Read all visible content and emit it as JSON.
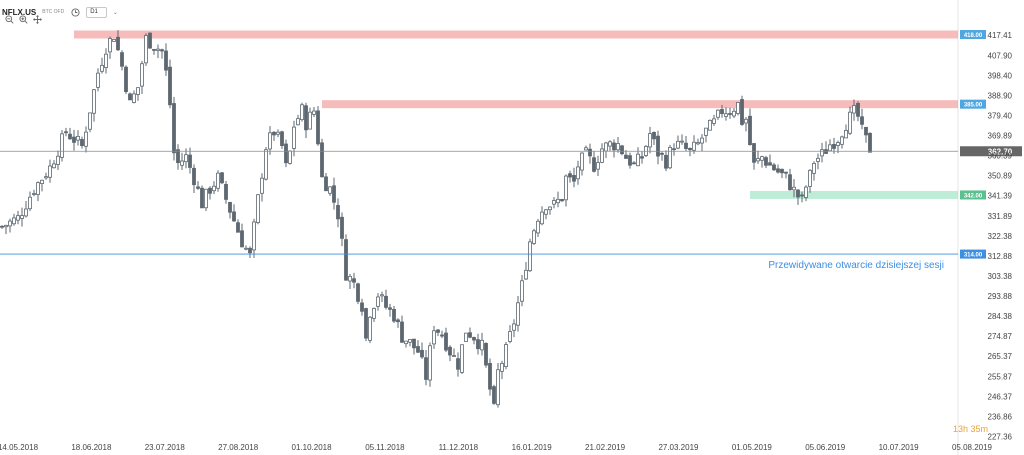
{
  "toolbar": {
    "symbol": "NFLX.US",
    "subtitle": "BTC OFD",
    "interval": "D1",
    "icons": [
      "clock-icon",
      "zoom-out-icon",
      "zoom-in-icon",
      "crosshair-icon"
    ]
  },
  "chart_data": {
    "type": "candlestick",
    "title": "NFLX.US",
    "interval": "D1",
    "ylim": [
      227.36,
      422.5
    ],
    "yticks": [
      "417.41",
      "407.90",
      "398.40",
      "388.90",
      "379.40",
      "369.89",
      "360.39",
      "350.89",
      "341.39",
      "331.89",
      "322.38",
      "312.88",
      "303.38",
      "293.88",
      "284.38",
      "274.87",
      "265.37",
      "255.87",
      "246.37",
      "236.86",
      "227.36"
    ],
    "x_labels": [
      "14.05.2018",
      "18.06.2018",
      "23.07.2018",
      "27.08.2018",
      "01.10.2018",
      "05.11.2018",
      "11.12.2018",
      "16.01.2019",
      "21.02.2019",
      "27.03.2019",
      "01.05.2019",
      "05.06.2019",
      "10.07.2019",
      "05.08.2019"
    ],
    "close_path": [
      [
        0,
        327
      ],
      [
        4,
        331
      ],
      [
        8,
        345
      ],
      [
        12,
        355
      ],
      [
        16,
        372
      ],
      [
        20,
        365
      ],
      [
        24,
        400
      ],
      [
        26,
        412
      ],
      [
        28,
        418
      ],
      [
        30,
        403
      ],
      [
        32,
        385
      ],
      [
        34,
        393
      ],
      [
        36,
        416
      ],
      [
        38,
        413
      ],
      [
        40,
        410
      ],
      [
        41,
        400
      ],
      [
        42,
        385
      ],
      [
        43,
        362
      ],
      [
        44,
        357
      ],
      [
        46,
        360
      ],
      [
        48,
        350
      ],
      [
        50,
        338
      ],
      [
        52,
        345
      ],
      [
        54,
        350
      ],
      [
        56,
        340
      ],
      [
        58,
        330
      ],
      [
        60,
        320
      ],
      [
        62,
        313
      ],
      [
        64,
        340
      ],
      [
        66,
        365
      ],
      [
        68,
        372
      ],
      [
        70,
        365
      ],
      [
        71,
        355
      ],
      [
        72,
        362
      ],
      [
        73,
        375
      ],
      [
        75,
        382
      ],
      [
        76,
        376
      ],
      [
        78,
        382
      ],
      [
        79,
        368
      ],
      [
        80,
        350
      ],
      [
        82,
        345
      ],
      [
        84,
        333
      ],
      [
        86,
        305
      ],
      [
        88,
        300
      ],
      [
        90,
        290
      ],
      [
        91,
        274
      ],
      [
        92,
        287
      ],
      [
        94,
        295
      ],
      [
        96,
        289
      ],
      [
        98,
        285
      ],
      [
        100,
        275
      ],
      [
        102,
        272
      ],
      [
        104,
        268
      ],
      [
        106,
        256
      ],
      [
        108,
        280
      ],
      [
        110,
        276
      ],
      [
        112,
        268
      ],
      [
        114,
        262
      ],
      [
        116,
        278
      ],
      [
        118,
        275
      ],
      [
        120,
        270
      ],
      [
        122,
        250
      ],
      [
        123,
        240
      ],
      [
        124,
        258
      ],
      [
        126,
        268
      ],
      [
        128,
        282
      ],
      [
        130,
        299
      ],
      [
        132,
        320
      ],
      [
        134,
        332
      ],
      [
        136,
        338
      ],
      [
        138,
        337
      ],
      [
        140,
        341
      ],
      [
        141,
        350
      ],
      [
        143,
        348
      ],
      [
        144,
        356
      ],
      [
        146,
        361
      ],
      [
        148,
        356
      ],
      [
        150,
        364
      ],
      [
        152,
        366
      ],
      [
        154,
        366
      ],
      [
        156,
        360
      ],
      [
        158,
        356
      ],
      [
        160,
        360
      ],
      [
        162,
        371
      ],
      [
        164,
        362
      ],
      [
        166,
        358
      ],
      [
        168,
        366
      ],
      [
        170,
        365
      ],
      [
        172,
        362
      ],
      [
        174,
        366
      ],
      [
        176,
        372
      ],
      [
        178,
        376
      ],
      [
        180,
        382
      ],
      [
        182,
        382
      ],
      [
        184,
        385
      ],
      [
        185,
        377
      ],
      [
        186,
        378
      ],
      [
        187,
        366
      ],
      [
        188,
        356
      ],
      [
        190,
        360
      ],
      [
        192,
        356
      ],
      [
        194,
        353
      ],
      [
        196,
        350
      ],
      [
        198,
        344
      ],
      [
        200,
        339
      ],
      [
        201,
        346
      ],
      [
        202,
        351
      ],
      [
        203,
        358
      ],
      [
        205,
        361
      ],
      [
        207,
        366
      ],
      [
        209,
        369
      ],
      [
        211,
        376
      ],
      [
        213,
        381
      ],
      [
        214,
        379
      ],
      [
        215,
        372
      ],
      [
        216,
        368
      ],
      [
        217,
        364
      ]
    ],
    "annotations": {
      "resistance_high": {
        "label": "418.00",
        "value": 418.0,
        "from_x": 18
      },
      "resistance_mid": {
        "label": "385.00",
        "value": 385.0,
        "from_x": 80
      },
      "support": {
        "label": "342.00",
        "value": 342.0,
        "from_x": 187
      },
      "expected_open": {
        "label": "314.00",
        "value": 314.0,
        "text": "Przewidywane otwarcie dzisiejszej sesji"
      },
      "current_price": {
        "label": "362.70",
        "value": 362.7
      }
    },
    "countdown": "13h 35m",
    "colors": {
      "candle": "#5d6770",
      "resistance": "#f3a6a6",
      "support": "#a9e6c8",
      "support_label": "#5bc08f",
      "resistance_label": "#4fa6e0",
      "expected_line": "#3d8fe0",
      "expected_text": "#3d8fe0",
      "price_label": "#666666",
      "countdown": "#e8a33d"
    }
  }
}
